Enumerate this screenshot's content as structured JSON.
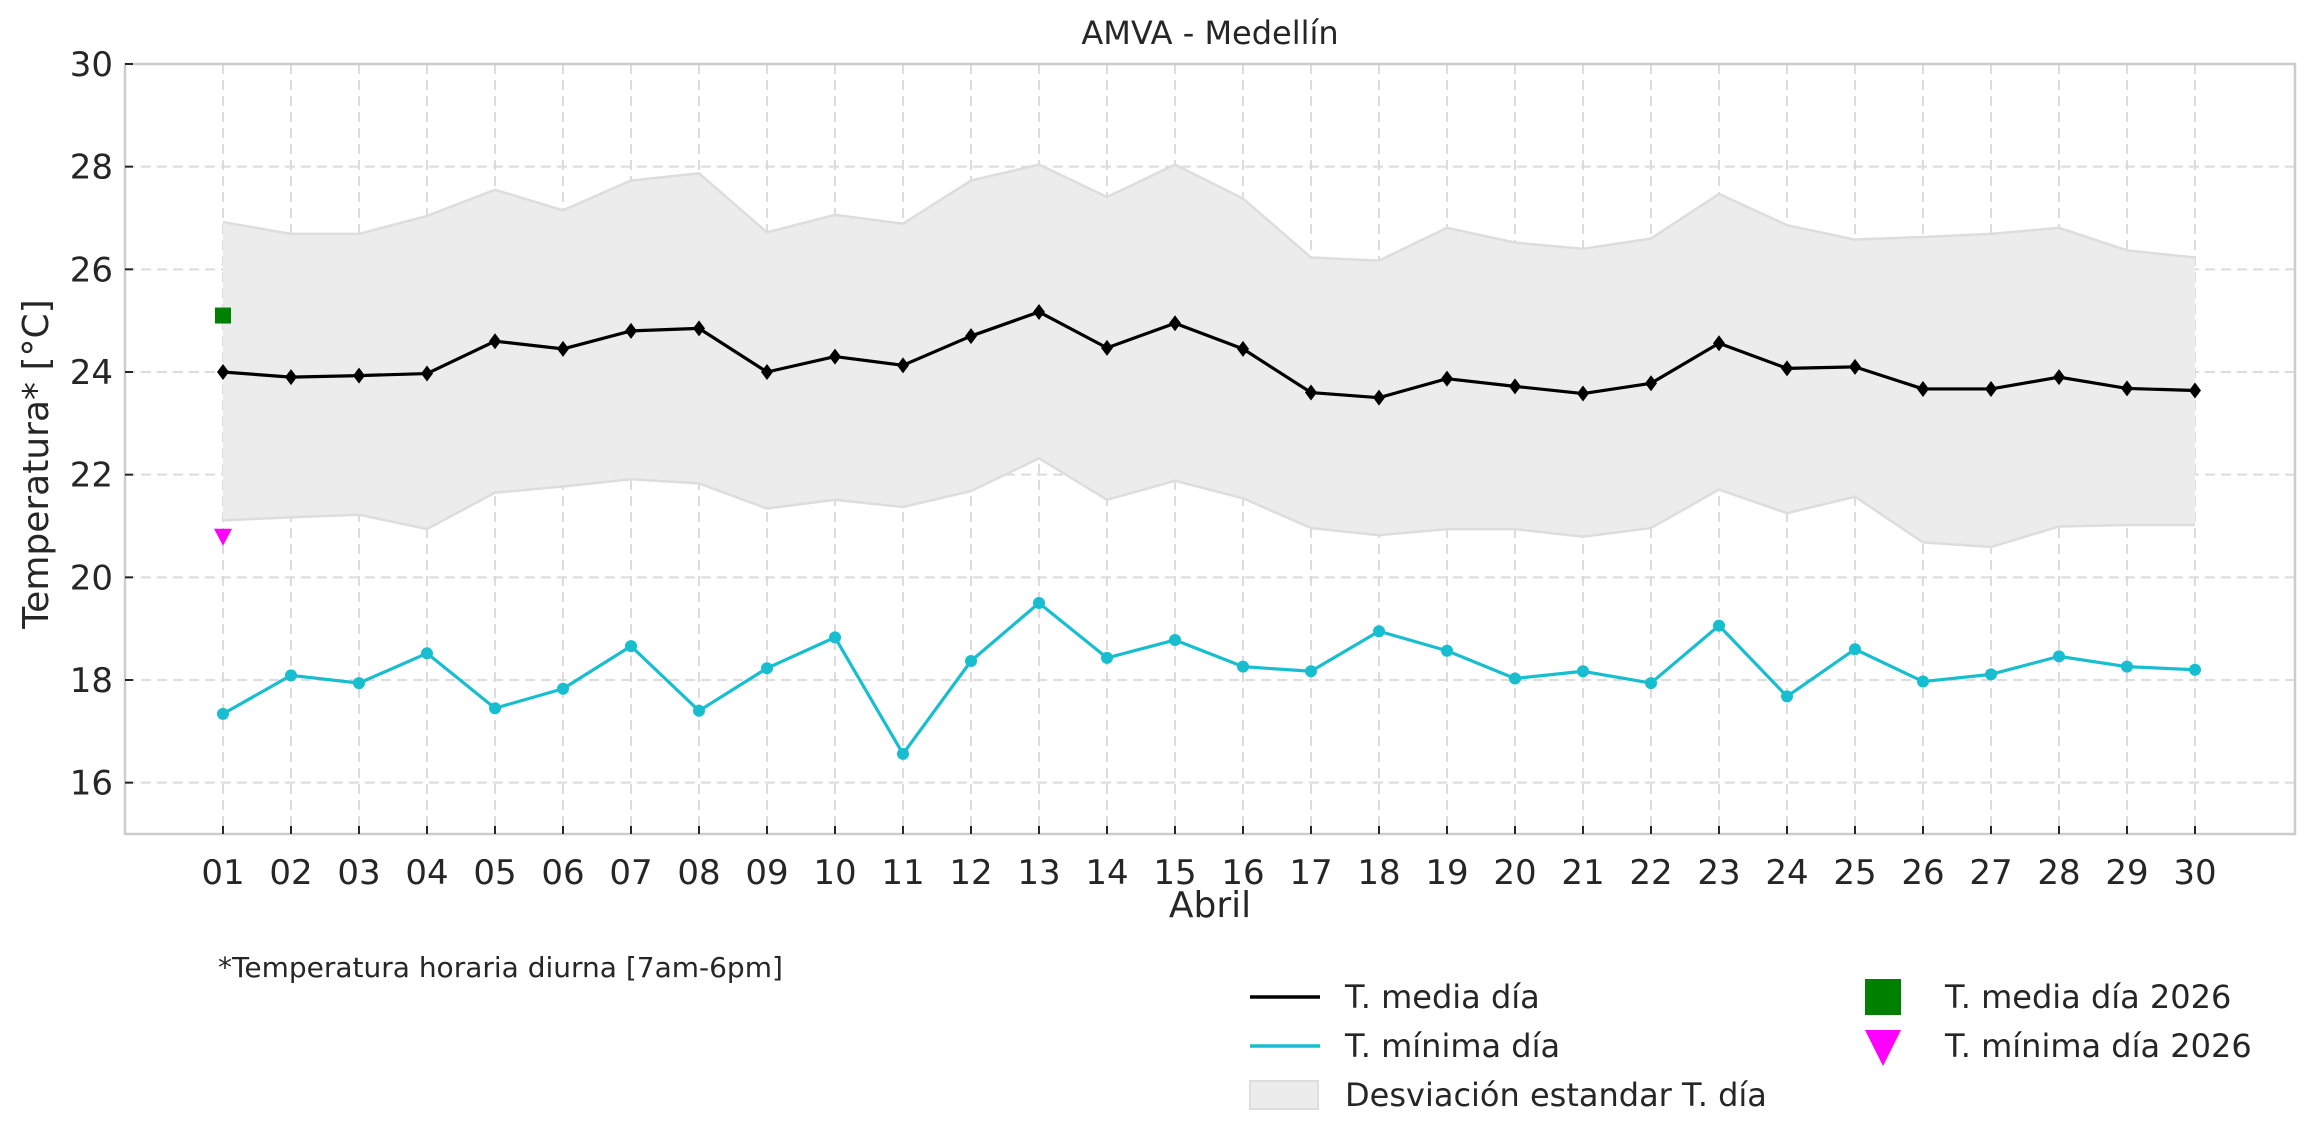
{
  "chart_data": {
    "type": "line",
    "title": "AMVA - Medellín",
    "xlabel": "Abril",
    "ylabel": "Temperatura* [°C]",
    "ylim": [
      15,
      30
    ],
    "yticks": [
      16,
      18,
      20,
      22,
      24,
      26,
      28,
      30
    ],
    "grid": true,
    "categories": [
      "01",
      "02",
      "03",
      "04",
      "05",
      "06",
      "07",
      "08",
      "09",
      "10",
      "11",
      "12",
      "13",
      "14",
      "15",
      "16",
      "17",
      "18",
      "19",
      "20",
      "21",
      "22",
      "23",
      "24",
      "25",
      "26",
      "27",
      "28",
      "29",
      "30"
    ],
    "series": [
      {
        "name": "T. media día",
        "kind": "line",
        "marker": "diamond",
        "color": "#000000",
        "values": [
          24.0,
          23.9,
          23.93,
          23.97,
          24.6,
          24.45,
          24.8,
          24.85,
          24.0,
          24.3,
          24.13,
          24.7,
          25.17,
          24.47,
          24.95,
          24.45,
          23.6,
          23.5,
          23.87,
          23.72,
          23.58,
          23.78,
          24.56,
          24.07,
          24.1,
          23.67,
          23.67,
          23.9,
          23.68,
          23.64
        ]
      },
      {
        "name": "T. mínima día",
        "kind": "line",
        "marker": "circle",
        "color": "#17becf",
        "values": [
          17.34,
          18.09,
          17.94,
          18.52,
          17.45,
          17.83,
          18.66,
          17.4,
          18.23,
          18.83,
          16.56,
          18.37,
          19.5,
          18.43,
          18.78,
          18.26,
          18.17,
          18.95,
          18.57,
          18.03,
          18.17,
          17.94,
          19.06,
          17.68,
          18.6,
          17.97,
          18.11,
          18.46,
          18.26,
          18.2
        ]
      },
      {
        "name": "Desviación estandar T. día",
        "kind": "band",
        "color": "#d9d9d9",
        "upper": [
          26.92,
          26.69,
          26.69,
          27.04,
          27.55,
          27.15,
          27.73,
          27.87,
          26.72,
          27.06,
          26.89,
          27.73,
          28.04,
          27.41,
          28.04,
          27.38,
          26.23,
          26.17,
          26.81,
          26.52,
          26.4,
          26.6,
          27.47,
          26.86,
          26.58,
          26.63,
          26.69,
          26.81,
          26.37,
          26.23
        ],
        "lower": [
          21.11,
          21.17,
          21.22,
          20.94,
          21.65,
          21.77,
          21.91,
          21.83,
          21.34,
          21.51,
          21.37,
          21.68,
          22.32,
          21.51,
          21.88,
          21.54,
          20.96,
          20.82,
          20.94,
          20.94,
          20.79,
          20.96,
          21.71,
          21.25,
          21.57,
          20.68,
          20.59,
          20.99,
          21.02,
          21.02
        ]
      },
      {
        "name": "T. media día 2026",
        "kind": "scatter",
        "marker": "square",
        "color": "#008000",
        "points": [
          {
            "x": "01",
            "y": 25.1
          }
        ]
      },
      {
        "name": "T. mínima día 2026",
        "kind": "scatter",
        "marker": "triangle-down",
        "color": "#ff00ff",
        "points": [
          {
            "x": "01",
            "y": 20.79
          }
        ]
      }
    ],
    "legend": {
      "placement": "bottom-right",
      "entries": [
        "T. media día",
        "T. mínima día",
        "Desviación estandar T. día",
        "T. media día 2026",
        "T. mínima día 2026"
      ]
    },
    "annotations": [
      "*Temperatura horaria diurna [7am-6pm]"
    ]
  }
}
